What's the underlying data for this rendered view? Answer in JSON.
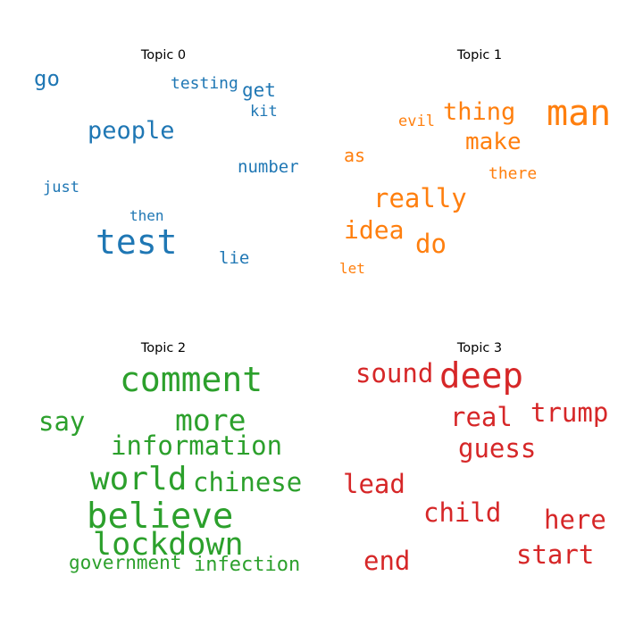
{
  "chart_data": [
    {
      "type": "wordcloud",
      "title": "Topic 0",
      "color": "#1f77b4",
      "words": [
        {
          "text": "test",
          "weight": 1.0
        },
        {
          "text": "people",
          "weight": 0.8
        },
        {
          "text": "go",
          "weight": 0.7
        },
        {
          "text": "get",
          "weight": 0.62
        },
        {
          "text": "number",
          "weight": 0.55
        },
        {
          "text": "testing",
          "weight": 0.52
        },
        {
          "text": "lie",
          "weight": 0.5
        },
        {
          "text": "just",
          "weight": 0.48
        },
        {
          "text": "kit",
          "weight": 0.47
        },
        {
          "text": "then",
          "weight": 0.45
        }
      ]
    },
    {
      "type": "wordcloud",
      "title": "Topic 1",
      "color": "#ff7f0e",
      "words": [
        {
          "text": "man",
          "weight": 1.0
        },
        {
          "text": "really",
          "weight": 0.8
        },
        {
          "text": "thing",
          "weight": 0.77
        },
        {
          "text": "idea",
          "weight": 0.76
        },
        {
          "text": "do",
          "weight": 0.76
        },
        {
          "text": "make",
          "weight": 0.72
        },
        {
          "text": "as",
          "weight": 0.55
        },
        {
          "text": "there",
          "weight": 0.52
        },
        {
          "text": "evil",
          "weight": 0.5
        },
        {
          "text": "let",
          "weight": 0.48
        }
      ]
    },
    {
      "type": "wordcloud",
      "title": "Topic 2",
      "color": "#2ca02c",
      "words": [
        {
          "text": "believe",
          "weight": 1.0
        },
        {
          "text": "comment",
          "weight": 0.98
        },
        {
          "text": "world",
          "weight": 0.9
        },
        {
          "text": "lockdown",
          "weight": 0.88
        },
        {
          "text": "more",
          "weight": 0.82
        },
        {
          "text": "information",
          "weight": 0.75
        },
        {
          "text": "say",
          "weight": 0.72
        },
        {
          "text": "chinese",
          "weight": 0.7
        },
        {
          "text": "infection",
          "weight": 0.6
        },
        {
          "text": "government",
          "weight": 0.58
        }
      ]
    },
    {
      "type": "wordcloud",
      "title": "Topic 3",
      "color": "#d62728",
      "words": [
        {
          "text": "deep",
          "weight": 1.0
        },
        {
          "text": "trump",
          "weight": 0.8
        },
        {
          "text": "sound",
          "weight": 0.78
        },
        {
          "text": "real",
          "weight": 0.77
        },
        {
          "text": "guess",
          "weight": 0.76
        },
        {
          "text": "lead",
          "weight": 0.75
        },
        {
          "text": "child",
          "weight": 0.74
        },
        {
          "text": "here",
          "weight": 0.74
        },
        {
          "text": "start",
          "weight": 0.74
        },
        {
          "text": "end",
          "weight": 0.73
        }
      ]
    }
  ]
}
